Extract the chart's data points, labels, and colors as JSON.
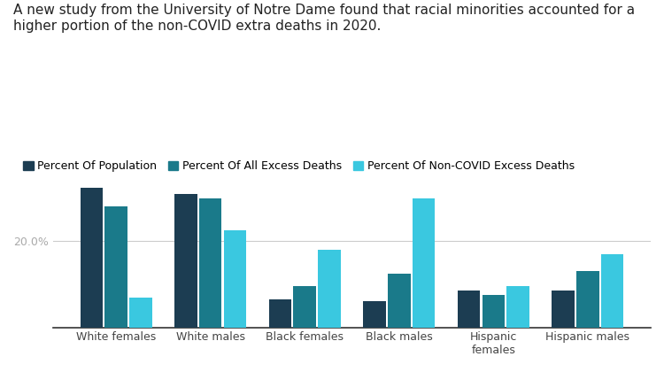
{
  "title": "A new study from the University of Notre Dame found that racial minorities accounted for a\nhigher portion of the non-COVID extra deaths in 2020.",
  "categories": [
    "White females",
    "White males",
    "Black females",
    "Black males",
    "Hispanic\nfemales",
    "Hispanic males"
  ],
  "legend_labels": [
    "Percent Of Population",
    "Percent Of All Excess Deaths",
    "Percent Of Non-COVID Excess Deaths"
  ],
  "colors": [
    "#1c3d52",
    "#1a7a8a",
    "#3ac8e0"
  ],
  "values": {
    "percent_population": [
      32.5,
      31.0,
      6.5,
      6.0,
      8.5,
      8.5
    ],
    "percent_all_excess": [
      28.0,
      30.0,
      9.5,
      12.5,
      7.5,
      13.0
    ],
    "percent_non_covid_excess": [
      7.0,
      22.5,
      18.0,
      30.0,
      9.5,
      17.0
    ]
  },
  "ylim": [
    0,
    38
  ],
  "ytick_label": "20.0%",
  "ytick_value": 20.0,
  "background_color": "#ffffff",
  "grid_color": "#cccccc",
  "title_fontsize": 11,
  "tick_fontsize": 9,
  "legend_fontsize": 9
}
